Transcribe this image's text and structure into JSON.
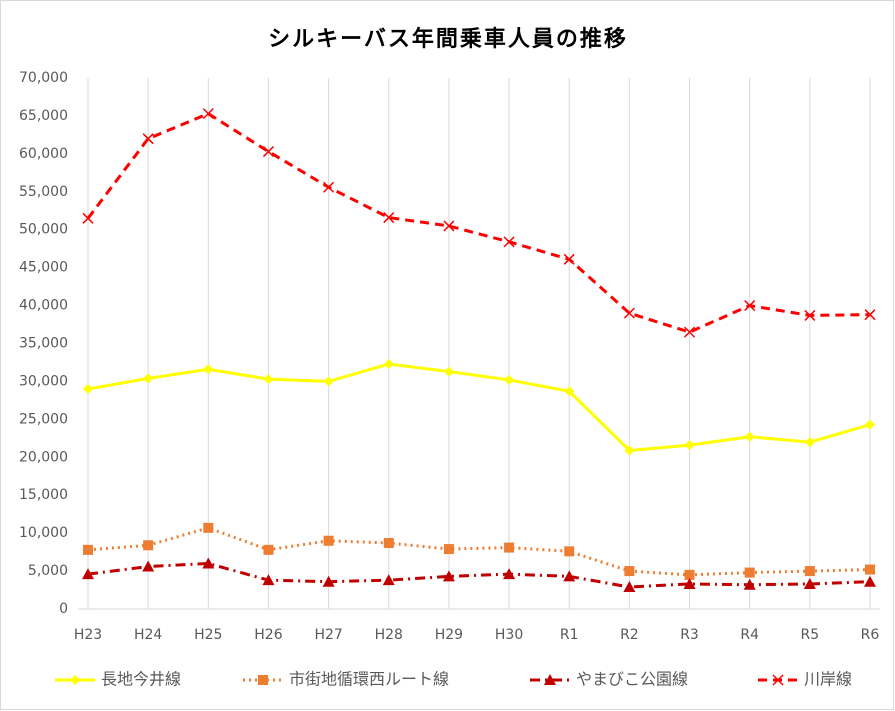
{
  "chart_data": {
    "type": "line",
    "title": "シルキーバス年間乗車人員の推移",
    "categories": [
      "H23",
      "H24",
      "H25",
      "H26",
      "H27",
      "H28",
      "H29",
      "H30",
      "R1",
      "R2",
      "R3",
      "R4",
      "R5",
      "R6"
    ],
    "series": [
      {
        "name": "長地今井線",
        "color": "#ffff00",
        "marker": "diamond",
        "dash": "solid",
        "values": [
          29000,
          30400,
          31600,
          30300,
          30000,
          32300,
          31300,
          30200,
          28700,
          20900,
          21600,
          22700,
          22000,
          24300
        ]
      },
      {
        "name": "市街地循環西ルート線",
        "color": "#ed7d31",
        "marker": "square",
        "dash": "dot",
        "values": [
          7800,
          8400,
          10700,
          7800,
          9000,
          8700,
          7900,
          8100,
          7600,
          5000,
          4500,
          4800,
          5000,
          5200
        ]
      },
      {
        "name": "やまびこ公園線",
        "color": "#c00000",
        "marker": "triangle",
        "dash": "dashdot",
        "values": [
          4600,
          5600,
          6000,
          3800,
          3600,
          3800,
          4300,
          4600,
          4300,
          2900,
          3300,
          3200,
          3300,
          3600
        ]
      },
      {
        "name": "川岸線",
        "color": "#ff0000",
        "marker": "x",
        "dash": "dash",
        "values": [
          51500,
          62000,
          65300,
          60300,
          55600,
          51600,
          50500,
          48400,
          46100,
          39000,
          36500,
          40000,
          38700,
          38800
        ]
      }
    ],
    "ylim": [
      0,
      70000
    ],
    "yticks": [
      0,
      {
        "value": 5000,
        "label": "5,000"
      },
      {
        "value": 10000,
        "label": "10,000"
      },
      {
        "value": 15000,
        "label": "15,000"
      },
      {
        "value": 20000,
        "label": "20,000"
      },
      {
        "value": 25000,
        "label": "25,000"
      },
      {
        "value": 30000,
        "label": "30,000"
      },
      {
        "value": 35000,
        "label": "35,000"
      },
      {
        "value": 40000,
        "label": "40,000"
      },
      {
        "value": 45000,
        "label": "45,000"
      },
      {
        "value": 50000,
        "label": "50,000"
      },
      {
        "value": 55000,
        "label": "55,000"
      },
      {
        "value": 60000,
        "label": "60,000"
      },
      {
        "value": 65000,
        "label": "65,000"
      },
      {
        "value": 70000,
        "label": "70,000"
      }
    ],
    "grid": true,
    "legend": "bottom"
  }
}
